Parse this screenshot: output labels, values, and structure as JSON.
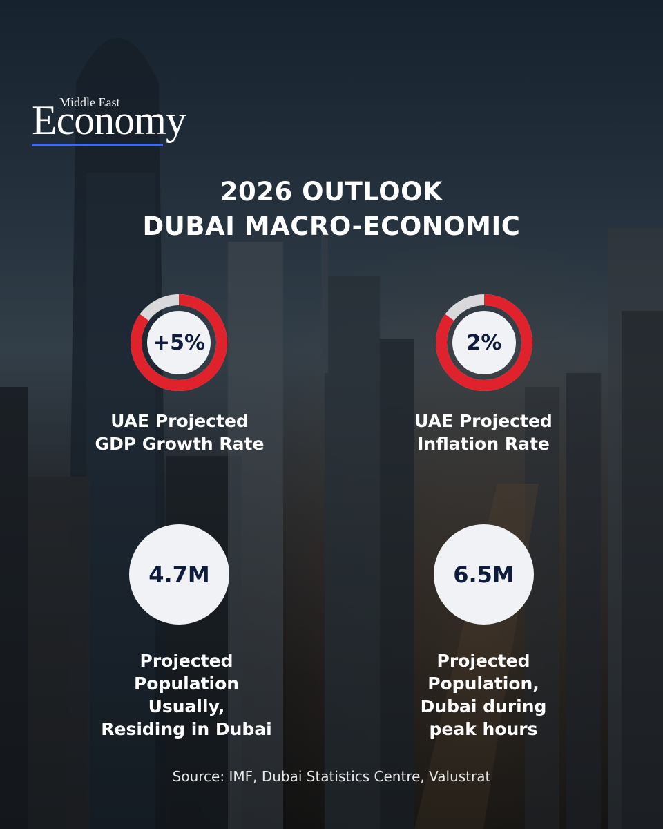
{
  "brand": {
    "top": "Middle East",
    "main": "Economy",
    "accent_color": "#3f6be8"
  },
  "title": {
    "line1": "2026 OUTLOOK",
    "line2": "DUBAI MACRO-ECONOMIC"
  },
  "metrics": [
    {
      "value": "+5%",
      "label_lines": [
        "UAE Projected",
        "GDP Growth Rate"
      ],
      "ring_fill_fraction": 0.85,
      "ring_color": "#e0222c"
    },
    {
      "value": "2%",
      "label_lines": [
        "UAE Projected",
        "Inflation Rate"
      ],
      "ring_fill_fraction": 0.85,
      "ring_color": "#e0222c"
    },
    {
      "value": "4.7M",
      "label_lines": [
        "Projected",
        "Population",
        "Usually,",
        "Residing in Dubai"
      ]
    },
    {
      "value": "6.5M",
      "label_lines": [
        "Projected",
        "Population,",
        "Dubai during",
        "peak hours"
      ]
    }
  ],
  "source": "Source: IMF, Dubai Statistics Centre, Valustrat"
}
